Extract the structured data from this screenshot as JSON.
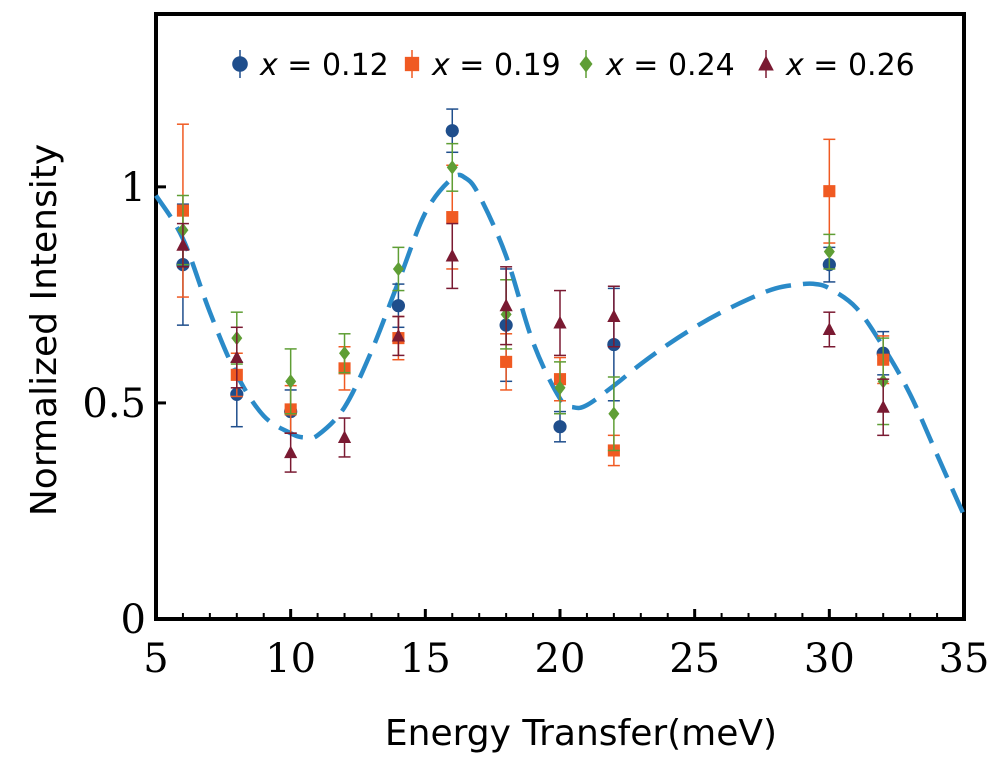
{
  "chart_data": {
    "type": "scatter",
    "title": "",
    "xlabel": "Energy Transfer(meV)",
    "ylabel": "Normalized Intensity",
    "xlim": [
      5,
      35
    ],
    "ylim": [
      0,
      1.4
    ],
    "x_ticks": [
      5,
      10,
      15,
      20,
      25,
      30,
      35
    ],
    "x_tick_labels": [
      "5",
      "10",
      "15",
      "20",
      "25",
      "30",
      "35"
    ],
    "y_ticks": [
      0,
      0.5,
      1
    ],
    "y_tick_labels": [
      "0",
      "0.5",
      "1"
    ],
    "grid": false,
    "legend_position": "top",
    "series": [
      {
        "name": "x = 0.12",
        "var": "x",
        "eq": " = 0.12",
        "marker": "circle",
        "color": "#1f4e8c",
        "points": [
          {
            "x": 6,
            "y": 0.82,
            "err": 0.14
          },
          {
            "x": 8,
            "y": 0.52,
            "err": 0.075
          },
          {
            "x": 10,
            "y": 0.48,
            "err": 0.05
          },
          {
            "x": 14,
            "y": 0.725,
            "err": 0.05
          },
          {
            "x": 16,
            "y": 1.13,
            "err": 0.05
          },
          {
            "x": 18,
            "y": 0.68,
            "err": 0.13
          },
          {
            "x": 20,
            "y": 0.445,
            "err": 0.035
          },
          {
            "x": 22,
            "y": 0.635,
            "err": 0.13
          },
          {
            "x": 30,
            "y": 0.82,
            "err": 0.04
          },
          {
            "x": 32,
            "y": 0.615,
            "err": 0.05
          }
        ]
      },
      {
        "name": "x = 0.19",
        "var": "x",
        "eq": " = 0.19",
        "marker": "square",
        "color": "#f05a22",
        "points": [
          {
            "x": 6,
            "y": 0.945,
            "err": 0.2
          },
          {
            "x": 8,
            "y": 0.565,
            "err": 0.05
          },
          {
            "x": 10,
            "y": 0.485,
            "err": 0.055
          },
          {
            "x": 12,
            "y": 0.58,
            "err": 0.05
          },
          {
            "x": 14,
            "y": 0.65,
            "err": 0.05
          },
          {
            "x": 16,
            "y": 0.93,
            "err": 0.12
          },
          {
            "x": 18,
            "y": 0.595,
            "err": 0.065
          },
          {
            "x": 20,
            "y": 0.555,
            "err": 0.05
          },
          {
            "x": 22,
            "y": 0.39,
            "err": 0.035
          },
          {
            "x": 30,
            "y": 0.99,
            "err": 0.12
          },
          {
            "x": 32,
            "y": 0.6,
            "err": 0.055
          }
        ]
      },
      {
        "name": "x = 0.24",
        "var": "x",
        "eq": " = 0.24",
        "marker": "diamond",
        "color": "#5f9e35",
        "points": [
          {
            "x": 6,
            "y": 0.9,
            "err": 0.08
          },
          {
            "x": 8,
            "y": 0.65,
            "err": 0.06
          },
          {
            "x": 10,
            "y": 0.55,
            "err": 0.075
          },
          {
            "x": 12,
            "y": 0.615,
            "err": 0.045
          },
          {
            "x": 14,
            "y": 0.81,
            "err": 0.05
          },
          {
            "x": 16,
            "y": 1.045,
            "err": 0.055
          },
          {
            "x": 18,
            "y": 0.705,
            "err": 0.08
          },
          {
            "x": 20,
            "y": 0.535,
            "err": 0.06
          },
          {
            "x": 22,
            "y": 0.475,
            "err": 0.085
          },
          {
            "x": 30,
            "y": 0.85,
            "err": 0.04
          },
          {
            "x": 32,
            "y": 0.55,
            "err": 0.1
          }
        ]
      },
      {
        "name": "x = 0.26",
        "var": "x",
        "eq": " = 0.26",
        "marker": "triangle",
        "color": "#7a1a32",
        "points": [
          {
            "x": 6,
            "y": 0.865,
            "err": 0.05
          },
          {
            "x": 8,
            "y": 0.605,
            "err": 0.07
          },
          {
            "x": 10,
            "y": 0.385,
            "err": 0.045
          },
          {
            "x": 12,
            "y": 0.42,
            "err": 0.045
          },
          {
            "x": 14,
            "y": 0.655,
            "err": 0.045
          },
          {
            "x": 16,
            "y": 0.84,
            "err": 0.075
          },
          {
            "x": 18,
            "y": 0.725,
            "err": 0.09
          },
          {
            "x": 20,
            "y": 0.685,
            "err": 0.075
          },
          {
            "x": 22,
            "y": 0.7,
            "err": 0.07
          },
          {
            "x": 30,
            "y": 0.67,
            "err": 0.04
          },
          {
            "x": 32,
            "y": 0.49,
            "err": 0.065
          }
        ]
      }
    ],
    "fit_curve": {
      "style": "dashed",
      "color": "#2a8ac8",
      "x": [
        5,
        6,
        7,
        8,
        9,
        10,
        10.5,
        11,
        12,
        13,
        14,
        15,
        16,
        16.5,
        17,
        18,
        19,
        20,
        20.5,
        21,
        22,
        23,
        24,
        25,
        26,
        27,
        28,
        29,
        29.5,
        30,
        31,
        32,
        33,
        34,
        35
      ],
      "y": [
        0.98,
        0.88,
        0.71,
        0.565,
        0.47,
        0.43,
        0.42,
        0.425,
        0.49,
        0.62,
        0.78,
        0.94,
        1.02,
        1.02,
        0.98,
        0.84,
        0.64,
        0.51,
        0.49,
        0.495,
        0.54,
        0.59,
        0.635,
        0.675,
        0.71,
        0.74,
        0.765,
        0.775,
        0.775,
        0.765,
        0.72,
        0.63,
        0.52,
        0.38,
        0.24
      ]
    }
  }
}
